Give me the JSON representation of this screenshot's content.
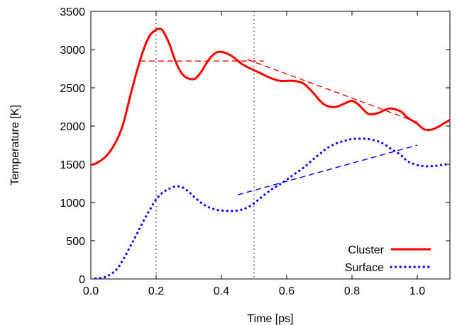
{
  "chart_data": {
    "type": "line",
    "title": "",
    "xlabel": "Time [ps]",
    "ylabel": "Temperature [K]",
    "xlim": [
      0.0,
      1.1
    ],
    "ylim": [
      0,
      3500
    ],
    "x_ticks": [
      0.0,
      0.2,
      0.4,
      0.6,
      0.8,
      1.0
    ],
    "x_tick_labels": [
      "0.0",
      "0.2",
      "0.4",
      "0.6",
      "0.8",
      "1.0"
    ],
    "y_ticks": [
      0,
      500,
      1000,
      1500,
      2000,
      2500,
      3000,
      3500
    ],
    "y_tick_labels": [
      "0",
      "500",
      "1000",
      "1500",
      "2000",
      "2500",
      "3000",
      "3500"
    ],
    "grid": false,
    "legend_position": "bottom-right",
    "vertical_reference_lines": [
      0.2,
      0.5
    ],
    "series": [
      {
        "name": "Cluster",
        "color": "#ff0000",
        "style": "solid",
        "x": [
          0.0,
          0.02,
          0.05,
          0.08,
          0.1,
          0.12,
          0.14,
          0.16,
          0.18,
          0.2,
          0.21,
          0.22,
          0.24,
          0.26,
          0.28,
          0.3,
          0.32,
          0.34,
          0.36,
          0.38,
          0.4,
          0.43,
          0.46,
          0.48,
          0.5,
          0.52,
          0.55,
          0.58,
          0.6,
          0.62,
          0.65,
          0.68,
          0.7,
          0.72,
          0.75,
          0.78,
          0.8,
          0.82,
          0.85,
          0.88,
          0.9,
          0.92,
          0.95,
          0.97,
          1.0,
          1.02,
          1.04,
          1.06,
          1.08,
          1.1
        ],
        "y": [
          1490,
          1520,
          1620,
          1820,
          2040,
          2380,
          2700,
          2980,
          3180,
          3260,
          3270,
          3250,
          3080,
          2840,
          2680,
          2620,
          2620,
          2720,
          2860,
          2950,
          2970,
          2920,
          2820,
          2770,
          2730,
          2690,
          2630,
          2590,
          2590,
          2590,
          2560,
          2440,
          2340,
          2270,
          2250,
          2300,
          2330,
          2280,
          2160,
          2170,
          2210,
          2230,
          2190,
          2110,
          2030,
          1960,
          1950,
          1980,
          2030,
          2080
        ]
      },
      {
        "name": "Surface",
        "color": "#0000ff",
        "style": "dotted",
        "x": [
          0.0,
          0.02,
          0.04,
          0.06,
          0.08,
          0.1,
          0.12,
          0.14,
          0.16,
          0.18,
          0.2,
          0.22,
          0.24,
          0.26,
          0.28,
          0.3,
          0.32,
          0.34,
          0.36,
          0.38,
          0.4,
          0.42,
          0.44,
          0.46,
          0.48,
          0.5,
          0.52,
          0.55,
          0.58,
          0.6,
          0.62,
          0.65,
          0.68,
          0.7,
          0.72,
          0.75,
          0.78,
          0.8,
          0.82,
          0.85,
          0.88,
          0.9,
          0.92,
          0.95,
          0.97,
          1.0,
          1.02,
          1.04,
          1.06,
          1.08,
          1.1
        ],
        "y": [
          0,
          10,
          20,
          60,
          130,
          260,
          420,
          580,
          750,
          900,
          1040,
          1130,
          1180,
          1210,
          1200,
          1140,
          1060,
          990,
          940,
          910,
          895,
          890,
          890,
          905,
          935,
          990,
          1060,
          1160,
          1240,
          1300,
          1360,
          1450,
          1560,
          1630,
          1700,
          1770,
          1810,
          1830,
          1835,
          1830,
          1800,
          1760,
          1700,
          1620,
          1540,
          1490,
          1475,
          1475,
          1480,
          1495,
          1500
        ]
      }
    ],
    "trend_lines": [
      {
        "series": "Cluster",
        "color": "#ff0000",
        "x": [
          0.15,
          0.53
        ],
        "y": [
          2850,
          2850
        ]
      },
      {
        "series": "Cluster",
        "color": "#ff0000",
        "x": [
          0.48,
          1.0
        ],
        "y": [
          2870,
          2050
        ]
      },
      {
        "series": "Surface",
        "color": "#0000ff",
        "x": [
          0.45,
          1.0
        ],
        "y": [
          1100,
          1750
        ]
      }
    ]
  }
}
